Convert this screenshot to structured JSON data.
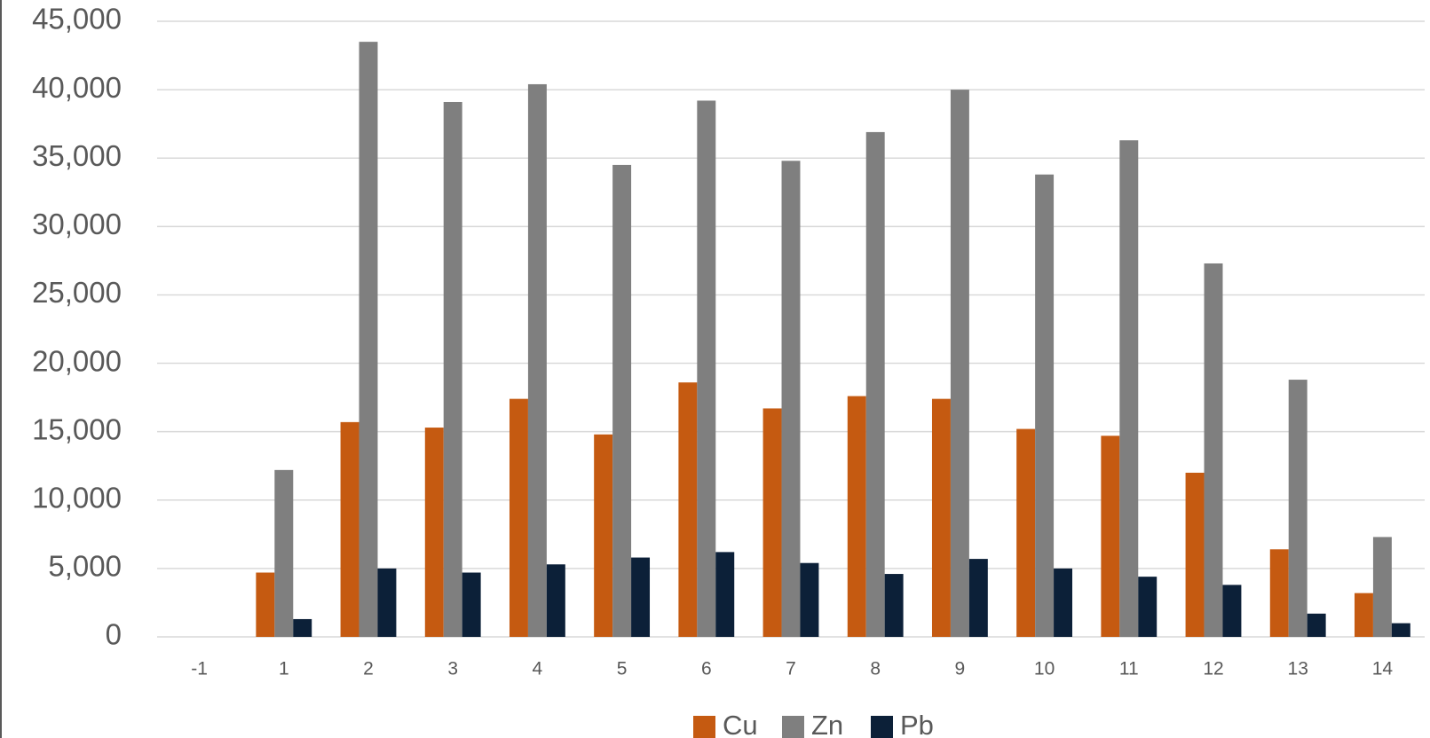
{
  "chart_data": {
    "type": "bar",
    "categories": [
      "-1",
      "1",
      "2",
      "3",
      "4",
      "5",
      "6",
      "7",
      "8",
      "9",
      "10",
      "11",
      "12",
      "13",
      "14"
    ],
    "series": [
      {
        "name": "Cu",
        "color": "#c55a11",
        "values": [
          null,
          4700,
          15700,
          15300,
          17400,
          14800,
          18600,
          16700,
          17600,
          17400,
          15200,
          14700,
          12000,
          6400,
          3200
        ]
      },
      {
        "name": "Zn",
        "color": "#7f7f7f",
        "values": [
          null,
          12200,
          43500,
          39100,
          40400,
          34500,
          39200,
          34800,
          36900,
          40000,
          33800,
          36300,
          27300,
          18800,
          7300
        ]
      },
      {
        "name": "Pb",
        "color": "#0c2038",
        "values": [
          null,
          1300,
          5000,
          4700,
          5300,
          5800,
          6200,
          5400,
          4600,
          5700,
          5000,
          4400,
          3800,
          1700,
          1000
        ]
      }
    ],
    "ylim": [
      0,
      45000
    ],
    "yticks": [
      0,
      {
        "value": 5000,
        "label": "5,000"
      },
      {
        "value": 10000,
        "label": "10,000"
      },
      {
        "value": 15000,
        "label": "15,000"
      },
      {
        "value": 20000,
        "label": "20,000"
      },
      {
        "value": 25000,
        "label": "25,000"
      },
      {
        "value": 30000,
        "label": "30,000"
      },
      {
        "value": 35000,
        "label": "35,000"
      },
      {
        "value": 40000,
        "label": "40,000"
      },
      {
        "value": 45000,
        "label": "45,000"
      }
    ],
    "grid": true,
    "legend": "bottom"
  }
}
